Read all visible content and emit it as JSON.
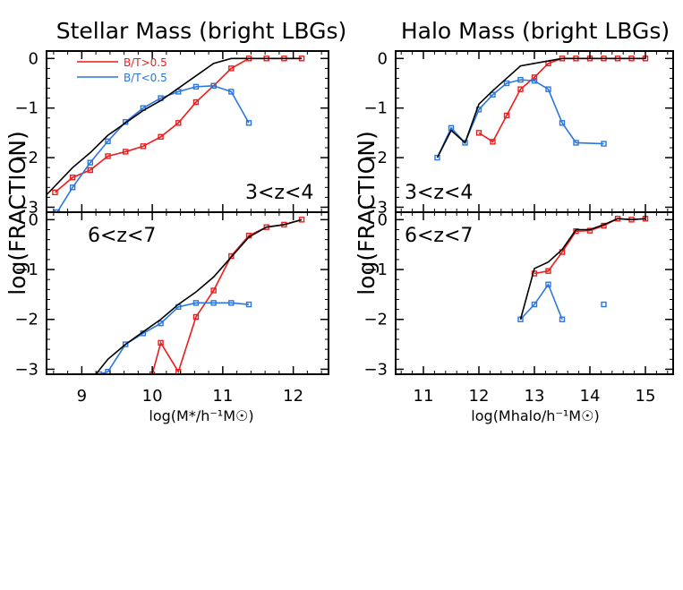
{
  "colors": {
    "bt_gt": "#ee1c1c",
    "bt_lt": "#2a76e0",
    "all": "#000000"
  },
  "legend": {
    "red": "B/T>0.5",
    "blue": "B/T<0.5"
  },
  "ylabel": "log(FRACTION)",
  "chart_data": [
    {
      "type": "line",
      "title": "Stellar Mass (bright LBGs)",
      "xlabel": "log(M*/h⁻¹M☉)",
      "xlim": [
        8.5,
        12.5
      ],
      "xticks": [
        "9",
        "10",
        "11",
        "12"
      ],
      "panels": [
        {
          "redshift_label": "3<z<4",
          "ylim": [
            -3.1,
            0.15
          ],
          "yticks": [
            "0",
            "-1",
            "-2",
            "-3"
          ],
          "series": [
            {
              "name": "B/T>0.5",
              "x": [
                8.62,
                8.87,
                9.12,
                9.37,
                9.62,
                9.87,
                10.12,
                10.37,
                10.62,
                10.87,
                11.12,
                11.37,
                11.62,
                11.87,
                12.12
              ],
              "y": [
                -2.7,
                -2.4,
                -2.25,
                -1.97,
                -1.88,
                -1.77,
                -1.58,
                -1.3,
                -0.88,
                -0.55,
                -0.2,
                0,
                0,
                0,
                0
              ]
            },
            {
              "name": "B/T<0.5",
              "x": [
                8.65,
                8.87,
                9.12,
                9.37,
                9.62,
                9.87,
                10.12,
                10.37,
                10.62,
                10.87,
                11.12,
                11.37
              ],
              "y": [
                -3.1,
                -2.6,
                -2.1,
                -1.67,
                -1.28,
                -1.0,
                -0.8,
                -0.67,
                -0.57,
                -0.55,
                -0.67,
                -1.3
              ]
            },
            {
              "name": "",
              "x": [
                8.5,
                8.87,
                9.12,
                9.37,
                9.62,
                9.87,
                10.12,
                10.37,
                10.62,
                10.87,
                11.12,
                11.37,
                11.62,
                11.87,
                12.12
              ],
              "y": [
                -2.75,
                -2.2,
                -1.9,
                -1.55,
                -1.3,
                -1.05,
                -0.85,
                -0.6,
                -0.35,
                -0.1,
                0,
                0,
                0,
                0,
                0
              ]
            }
          ]
        },
        {
          "redshift_label": "6<z<7",
          "ylim": [
            -3.1,
            0.15
          ],
          "yticks": [
            "0",
            "-1",
            "-2",
            "-3"
          ],
          "series": [
            {
              "name": "B/T>0.5",
              "x": [
                10.0,
                10.12,
                10.37,
                10.62,
                10.87,
                11.12,
                11.37,
                11.62,
                11.87,
                12.12
              ],
              "y": [
                -3.1,
                -2.47,
                -3.05,
                -1.95,
                -1.42,
                -0.73,
                -0.32,
                -0.15,
                -0.1,
                0
              ]
            },
            {
              "name": "B/T<0.5",
              "x": [
                9.25,
                9.37,
                9.62,
                9.87,
                10.12,
                10.37,
                10.62,
                10.87,
                11.12,
                11.37
              ],
              "y": [
                -3.1,
                -3.05,
                -2.5,
                -2.28,
                -2.08,
                -1.75,
                -1.67,
                -1.67,
                -1.67,
                -1.7
              ]
            },
            {
              "name": "",
              "x": [
                9.2,
                9.37,
                9.62,
                9.87,
                10.12,
                10.37,
                10.62,
                10.87,
                11.12,
                11.37,
                11.62,
                11.87,
                12.12
              ],
              "y": [
                -3.1,
                -2.8,
                -2.5,
                -2.25,
                -2.0,
                -1.7,
                -1.45,
                -1.15,
                -0.75,
                -0.35,
                -0.15,
                -0.1,
                0
              ]
            }
          ]
        }
      ]
    },
    {
      "type": "line",
      "title": "Halo Mass (bright LBGs)",
      "xlabel": "log(Mhalo/h⁻¹M☉)",
      "xlim": [
        10.5,
        15.5
      ],
      "xticks": [
        "11",
        "12",
        "13",
        "14",
        "15"
      ],
      "panels": [
        {
          "redshift_label": "3<z<4",
          "ylim": [
            -3.1,
            0.15
          ],
          "yticks": [
            "0",
            "-1",
            "-2",
            "-3"
          ],
          "series": [
            {
              "name": "B/T>0.5",
              "x": [
                12.0,
                12.25,
                12.5,
                12.75,
                13.0,
                13.25,
                13.5,
                13.75,
                14.0,
                14.25,
                14.5,
                14.75,
                15.0
              ],
              "y": [
                -1.5,
                -1.68,
                -1.15,
                -0.62,
                -0.38,
                -0.1,
                0,
                0,
                0,
                0,
                0,
                0,
                0
              ]
            },
            {
              "name": "B/T<0.5",
              "x": [
                11.25,
                11.5,
                11.75,
                12.0,
                12.25,
                12.5,
                12.75,
                13.0,
                13.25,
                13.5,
                13.75,
                14.25
              ],
              "y": [
                -2.0,
                -1.4,
                -1.7,
                -1.03,
                -0.73,
                -0.5,
                -0.43,
                -0.45,
                -0.62,
                -1.3,
                -1.7,
                -1.72
              ]
            },
            {
              "name": "",
              "x": [
                11.25,
                11.5,
                11.75,
                12.0,
                12.25,
                12.5,
                12.75,
                13.0,
                13.25,
                13.5,
                13.75,
                14.0,
                14.25,
                14.5,
                14.75,
                15.0
              ],
              "y": [
                -2.0,
                -1.45,
                -1.7,
                -0.92,
                -0.65,
                -0.4,
                -0.15,
                -0.1,
                -0.05,
                0,
                0,
                0,
                0,
                0,
                0,
                0
              ]
            }
          ]
        },
        {
          "redshift_label": "6<z<7",
          "ylim": [
            -3.1,
            0.15
          ],
          "yticks": [
            "0",
            "-1",
            "-2",
            "-3"
          ],
          "series": [
            {
              "name": "B/T>0.5",
              "x": [
                13.0,
                13.25,
                13.5,
                13.75,
                14.0,
                14.25,
                14.5,
                14.75,
                15.0
              ],
              "y": [
                -1.08,
                -1.03,
                -0.65,
                -0.23,
                -0.22,
                -0.12,
                0.02,
                0.0,
                0.02
              ]
            },
            {
              "name": "B/T<0.5",
              "x": [
                12.75,
                13.0,
                13.25,
                13.5,
                14.25
              ],
              "y": [
                -2.0,
                -1.7,
                -1.3,
                -2.0,
                -1.7
              ]
            },
            {
              "name": "",
              "x": [
                12.75,
                13.0,
                13.25,
                13.5,
                13.75,
                14.0,
                14.25,
                14.5,
                14.75,
                15.0
              ],
              "y": [
                -2.0,
                -0.98,
                -0.85,
                -0.6,
                -0.2,
                -0.2,
                -0.1,
                0.02,
                0.0,
                0.02
              ]
            }
          ]
        }
      ]
    }
  ]
}
